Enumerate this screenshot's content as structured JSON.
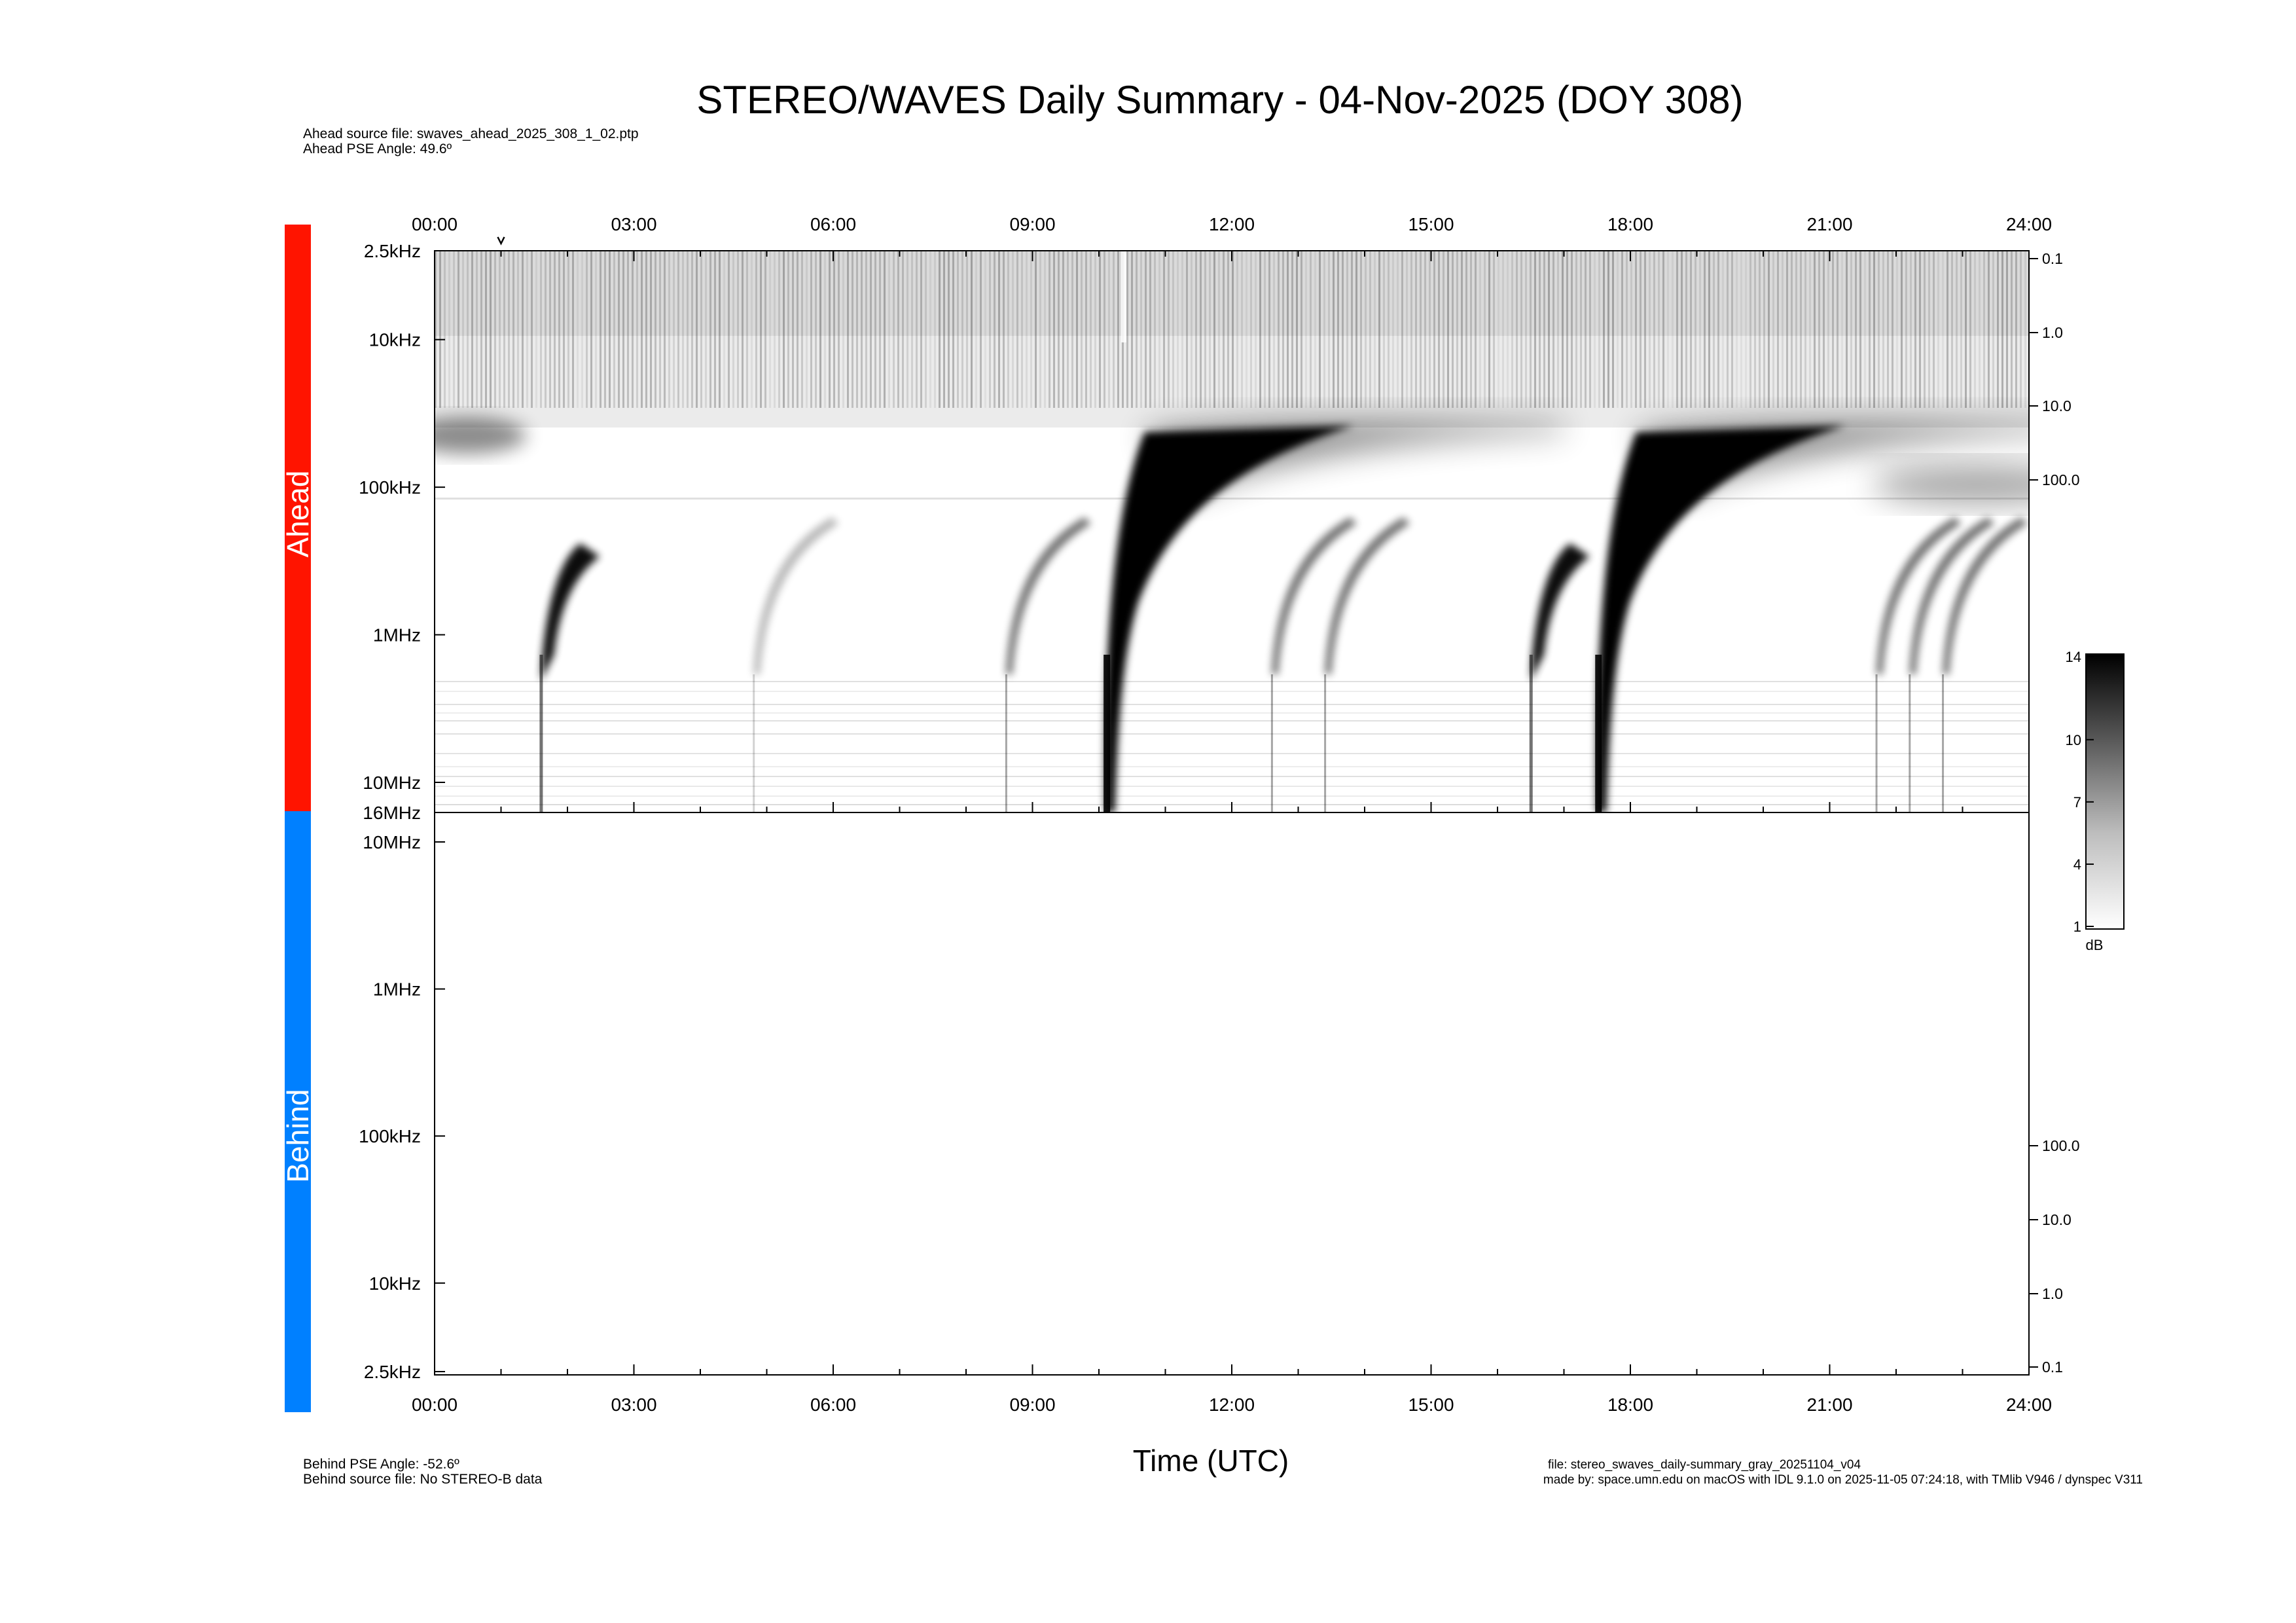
{
  "title": "STEREO/WAVES Daily Summary - 04-Nov-2025 (DOY 308)",
  "header_info": {
    "line1": "Ahead source file: swaves_ahead_2025_308_1_02.ptp",
    "line2": "Ahead PSE Angle:   49.6º"
  },
  "footer_left": {
    "line1": "Behind PSE Angle:  -52.6º",
    "line2": "Behind source file: No STEREO-B data"
  },
  "footer_right": {
    "line1": "file: stereo_swaves_daily-summary_gray_20251104_v04",
    "line2": "made by: space.umn.edu on macOS with IDL 9.1.0 on 2025-11-05 07:24:18, with TMlib V946 / dynspec V311"
  },
  "xlabel": "Time (UTC)",
  "colors": {
    "ahead": "#ff1400",
    "behind": "#0080ff",
    "spectrum": "#000000",
    "background": "#ffffff"
  },
  "chart_data": [
    {
      "type": "heatmap",
      "name": "Ahead",
      "x_ticks": [
        "00:00",
        "03:00",
        "06:00",
        "09:00",
        "12:00",
        "15:00",
        "18:00",
        "21:00",
        "24:00"
      ],
      "xlim_hours": [
        0,
        24
      ],
      "y_scale": "log",
      "y_ticks_left": [
        "2.5kHz",
        "10kHz",
        "100kHz",
        "1MHz",
        "10MHz",
        "16MHz"
      ],
      "y_ticks_right": [
        "0.1",
        "1.0",
        "10.0",
        "100.0"
      ],
      "marker_time_hours": 1.0,
      "bursts_hours": [
        {
          "start": 1.6,
          "intensity": "strong"
        },
        {
          "start": 4.8,
          "intensity": "weak"
        },
        {
          "start": 8.6,
          "intensity": "medium"
        },
        {
          "start": 10.1,
          "intensity": "very strong"
        },
        {
          "start": 12.6,
          "intensity": "medium"
        },
        {
          "start": 13.4,
          "intensity": "medium"
        },
        {
          "start": 16.5,
          "intensity": "strong"
        },
        {
          "start": 17.5,
          "intensity": "very strong"
        },
        {
          "start": 21.7,
          "intensity": "medium"
        },
        {
          "start": 22.2,
          "intensity": "medium"
        },
        {
          "start": 22.7,
          "intensity": "medium"
        }
      ]
    },
    {
      "type": "heatmap",
      "name": "Behind",
      "x_ticks": [
        "00:00",
        "03:00",
        "06:00",
        "09:00",
        "12:00",
        "15:00",
        "18:00",
        "21:00",
        "24:00"
      ],
      "xlim_hours": [
        0,
        24
      ],
      "y_scale": "log",
      "y_ticks_left": [
        "10MHz",
        "1MHz",
        "100kHz",
        "10kHz",
        "2.5kHz"
      ],
      "y_ticks_right": [
        "100.0",
        "10.0",
        "1.0",
        "0.1"
      ],
      "bursts_hours": []
    }
  ],
  "colorbar": {
    "ticks": [
      "14",
      "10",
      "7",
      "4",
      "1"
    ],
    "range": [
      1,
      14
    ],
    "unit": "dB"
  }
}
